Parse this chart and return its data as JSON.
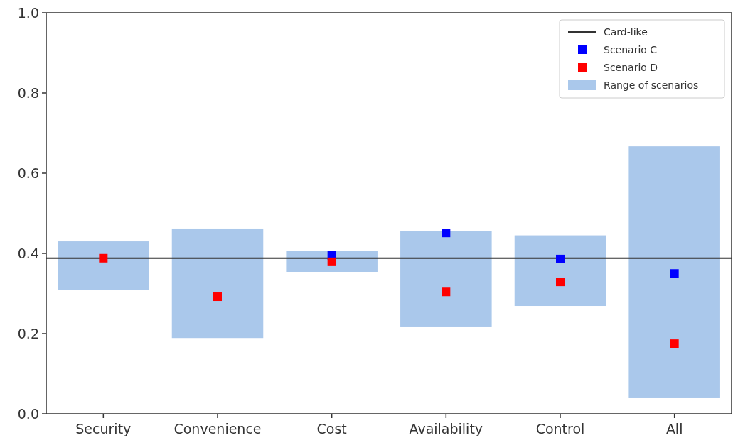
{
  "chart_data": {
    "type": "bar",
    "categories": [
      "Security",
      "Convenience",
      "Cost",
      "Availability",
      "Control",
      "All"
    ],
    "series": [
      {
        "name": "Range of scenarios",
        "color": "#aac8eb",
        "base": [
          0.308,
          0.189,
          0.354,
          0.216,
          0.269,
          0.039
        ],
        "values": [
          0.122,
          0.273,
          0.053,
          0.239,
          0.176,
          0.628
        ]
      },
      {
        "type": "scatter",
        "name": "Scenario C",
        "color": "#0000ff",
        "values": [
          null,
          null,
          0.395,
          0.451,
          0.386,
          0.35
        ]
      },
      {
        "type": "scatter",
        "name": "Scenario D",
        "color": "#ff0000",
        "values": [
          0.388,
          0.292,
          0.379,
          0.304,
          0.329,
          0.175
        ]
      }
    ],
    "ref_lines": [
      {
        "axis": "y",
        "value": 0.388,
        "label": "Card-like",
        "color": "#333333"
      }
    ],
    "ylim": [
      0,
      1
    ],
    "yticks": [
      {
        "value": 0,
        "label": "0.0"
      },
      {
        "value": 0.2,
        "label": "0.2"
      },
      {
        "value": 0.4,
        "label": "0.4"
      },
      {
        "value": 0.6,
        "label": "0.6"
      },
      {
        "value": 0.8,
        "label": "0.8"
      },
      {
        "value": 1,
        "label": "1.0"
      }
    ],
    "marker": "square",
    "legend": "top right",
    "grid": false
  }
}
